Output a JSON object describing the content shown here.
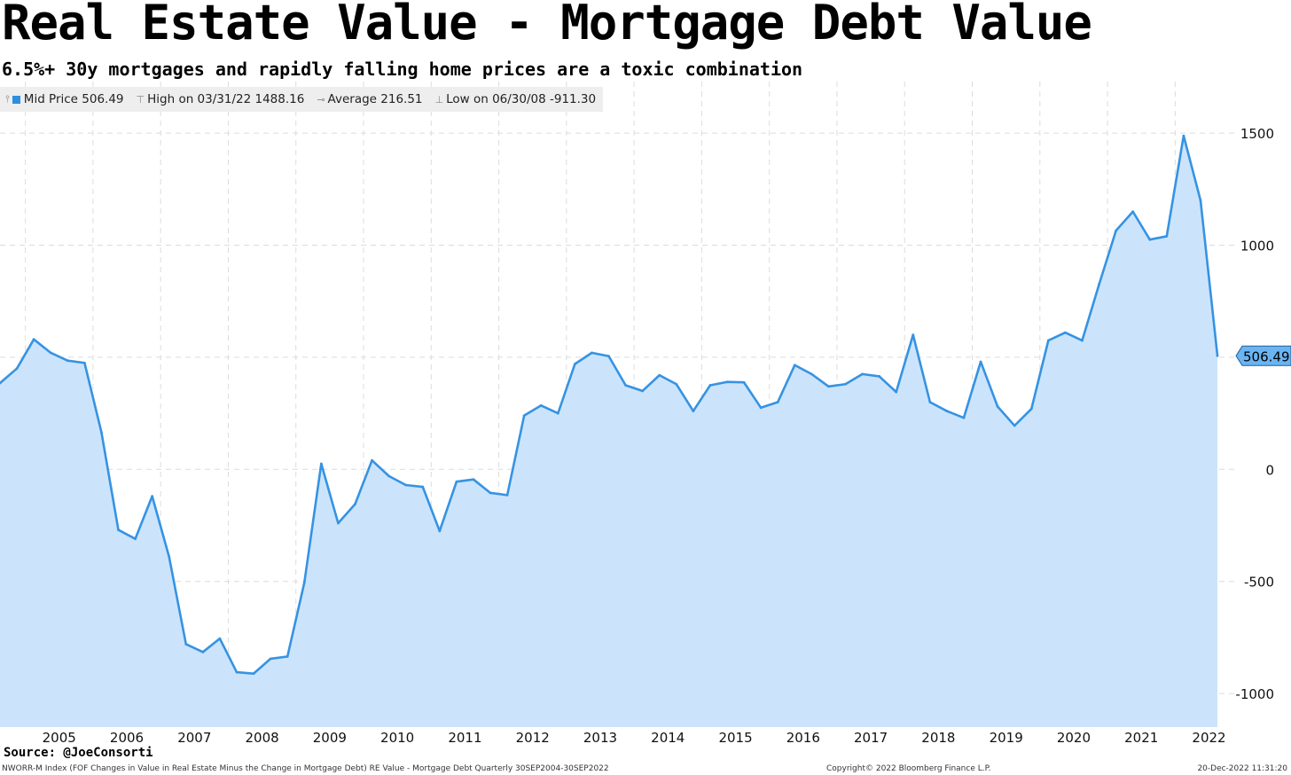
{
  "header": {
    "title": "Real Estate Value - Mortgage Debt Value",
    "subtitle": "6.5%+ 30y mortgages and rapidly falling home prices are a toxic combination"
  },
  "legend": {
    "mid_price": "Mid Price 506.49",
    "high": "High on 03/31/22 1488.16",
    "average": "Average 216.51",
    "low": "Low on 06/30/08 -911.30"
  },
  "colors": {
    "line": "#3593e3",
    "fill": "#cce4fb",
    "last_label_bg": "#6ab4f2"
  },
  "footer": {
    "source": "Source: @JoeConsorti",
    "index_info": "NWORR-M Index (FOF Changes in Value in Real Estate Minus the Change in Mortgage Debt) RE Value - Mortgage Debt  Quarterly 30SEP2004-30SEP2022",
    "copyright": "Copyright© 2022 Bloomberg Finance L.P.",
    "timestamp": "20-Dec-2022 11:31:20"
  },
  "chart_data": {
    "type": "area",
    "title": "Real Estate Value - Mortgage Debt Value",
    "subtitle": "6.5%+ 30y mortgages and rapidly falling home prices are a toxic combination",
    "series": [
      {
        "name": "Mid Price",
        "x": [
          "2004Q3",
          "2004Q4",
          "2005Q1",
          "2005Q2",
          "2005Q3",
          "2005Q4",
          "2006Q1",
          "2006Q2",
          "2006Q3",
          "2006Q4",
          "2007Q1",
          "2007Q2",
          "2007Q3",
          "2007Q4",
          "2008Q1",
          "2008Q2",
          "2008Q3",
          "2008Q4",
          "2009Q1",
          "2009Q2",
          "2009Q3",
          "2009Q4",
          "2010Q1",
          "2010Q2",
          "2010Q3",
          "2010Q4",
          "2011Q1",
          "2011Q2",
          "2011Q3",
          "2011Q4",
          "2012Q1",
          "2012Q2",
          "2012Q3",
          "2012Q4",
          "2013Q1",
          "2013Q2",
          "2013Q3",
          "2013Q4",
          "2014Q1",
          "2014Q2",
          "2014Q3",
          "2014Q4",
          "2015Q1",
          "2015Q2",
          "2015Q3",
          "2015Q4",
          "2016Q1",
          "2016Q2",
          "2016Q3",
          "2016Q4",
          "2017Q1",
          "2017Q2",
          "2017Q3",
          "2017Q4",
          "2018Q1",
          "2018Q2",
          "2018Q3",
          "2018Q4",
          "2019Q1",
          "2019Q2",
          "2019Q3",
          "2019Q4",
          "2020Q1",
          "2020Q2",
          "2020Q3",
          "2020Q4",
          "2021Q1",
          "2021Q2",
          "2021Q3",
          "2021Q4",
          "2022Q1",
          "2022Q2",
          "2022Q3"
        ],
        "values": [
          385,
          450,
          580,
          520,
          485,
          475,
          165,
          -270,
          -310,
          -120,
          -390,
          -780,
          -815,
          -755,
          -905,
          -911.3,
          -845,
          -835,
          -505,
          25,
          -240,
          -155,
          40,
          -30,
          -70,
          -78,
          -275,
          -55,
          -45,
          -105,
          -115,
          240,
          285,
          250,
          470,
          520,
          505,
          375,
          350,
          420,
          380,
          260,
          375,
          390,
          388,
          275,
          300,
          465,
          425,
          370,
          380,
          425,
          415,
          345,
          600,
          300,
          260,
          230,
          480,
          280,
          195,
          270,
          575,
          610,
          575,
          825,
          1065,
          1150,
          1025,
          1040,
          1488.16,
          1200,
          506.49
        ]
      }
    ],
    "xlabel": "",
    "ylabel": "",
    "x_tick_labels": [
      "2005",
      "2006",
      "2007",
      "2008",
      "2009",
      "2010",
      "2011",
      "2012",
      "2013",
      "2014",
      "2015",
      "2016",
      "2017",
      "2018",
      "2019",
      "2020",
      "2021",
      "2022"
    ],
    "y_tick_labels": [
      "1500",
      "1000",
      "0",
      "-500",
      "-1000"
    ],
    "y_ticks": [
      1500,
      1000,
      0,
      -500,
      -1000
    ],
    "ylim": [
      -1150,
      1730
    ],
    "last_value_label": "506.49",
    "grid": true,
    "y_axis_position": "right",
    "legend_placement": "top-left",
    "stats": {
      "last": 506.49,
      "high": 1488.16,
      "high_date": "03/31/22",
      "average": 216.51,
      "low": -911.3,
      "low_date": "06/30/08"
    }
  }
}
